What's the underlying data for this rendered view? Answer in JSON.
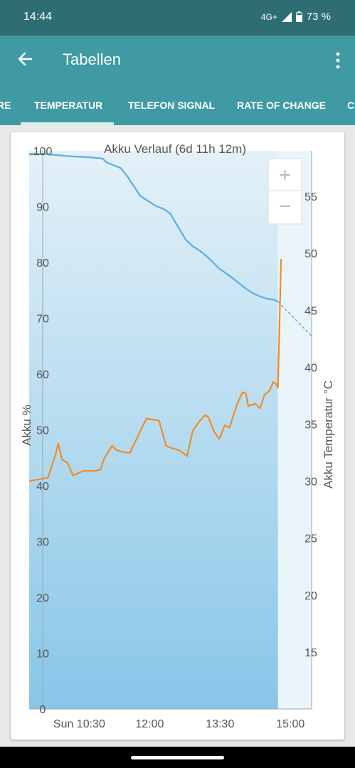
{
  "status": {
    "time": "14:44",
    "network": "4G+",
    "battery": "73 %"
  },
  "appbar": {
    "title": "Tabellen"
  },
  "tabs": [
    {
      "label": "RE"
    },
    {
      "label": "TEMPERATUR",
      "selected": true
    },
    {
      "label": "TELEFON SIGNAL"
    },
    {
      "label": "RATE OF CHANGE"
    },
    {
      "label": "C"
    }
  ],
  "zoom": {
    "in": "+",
    "out": "−"
  },
  "colors": {
    "status_bar": "#2e6e72",
    "app_bar": "#3f9aa4",
    "battery_line": "#5aaede",
    "temperature_line": "#ef8c2a",
    "fill_top": "#e4f1f8",
    "fill_bottom": "#88c6e8",
    "start_marker": "#8bc34a"
  },
  "chart_data": {
    "type": "line",
    "title": "Akku Verlauf (6d 11h 12m)",
    "ylabel": "Akku %",
    "ylabel_right": "Akku Temperatur °C",
    "ylim": [
      0,
      100
    ],
    "ylim_right": [
      10,
      59
    ],
    "xlim": [
      "09:26",
      "15:27"
    ],
    "x_ticks": [
      "Sun 10:30",
      "12:00",
      "13:30",
      "15:00"
    ],
    "y_ticks": [
      "0",
      "10",
      "20",
      "30",
      "40",
      "50",
      "60",
      "70",
      "80",
      "90",
      "100"
    ],
    "y_ticks_right": [
      "15",
      "20",
      "25",
      "30",
      "35",
      "40",
      "45",
      "50",
      "55"
    ],
    "grid": false,
    "series": [
      {
        "axis": "left",
        "x": [
          "09:26",
          "09:46",
          "10:20",
          "10:45",
          "11:00",
          "11:05",
          "11:14",
          "11:23",
          "11:32",
          "11:40",
          "11:48",
          "11:59",
          "12:08",
          "12:17",
          "12:26",
          "12:35",
          "12:46",
          "12:55",
          "13:04",
          "13:13",
          "13:19",
          "13:28",
          "13:37",
          "13:45",
          "13:54",
          "14:03",
          "14:12",
          "14:21",
          "14:30",
          "14:39",
          "14:44"
        ],
        "values": [
          99.4,
          99.4,
          99.0,
          98.8,
          98.6,
          97.9,
          97.4,
          96.9,
          95.3,
          93.6,
          91.9,
          90.9,
          90.1,
          89.6,
          88.8,
          86.7,
          84.1,
          82.9,
          82.1,
          81.1,
          80.3,
          79.0,
          78.1,
          77.3,
          76.3,
          75.3,
          74.5,
          73.9,
          73.5,
          73.3,
          73.0
        ]
      },
      {
        "axis": "left",
        "style": "dashed",
        "x": [
          "14:44",
          "15:27"
        ],
        "values": [
          73.0,
          66.8
        ]
      },
      {
        "axis": "right",
        "x": [
          "09:26",
          "09:50",
          "10:00",
          "10:03",
          "10:08",
          "10:15",
          "10:22",
          "10:35",
          "10:50",
          "10:57",
          "11:02",
          "11:12",
          "11:18",
          "11:29",
          "11:35",
          "11:48",
          "11:56",
          "12:12",
          "12:21",
          "12:28",
          "12:38",
          "12:48",
          "12:55",
          "13:02",
          "13:11",
          "13:15",
          "13:22",
          "13:29",
          "13:36",
          "13:42",
          "13:52",
          "13:59",
          "14:03",
          "14:06",
          "14:15",
          "14:21",
          "14:27",
          "14:33",
          "14:38",
          "14:42",
          "14:44",
          "14:48"
        ],
        "values": [
          30.0,
          30.3,
          32.4,
          33.3,
          31.9,
          31.6,
          30.5,
          30.9,
          30.9,
          31.0,
          32.0,
          33.1,
          32.7,
          32.5,
          32.5,
          34.4,
          35.5,
          35.3,
          33.1,
          32.9,
          32.7,
          32.2,
          34.4,
          35.1,
          35.8,
          35.6,
          34.4,
          33.7,
          34.9,
          34.7,
          36.8,
          37.8,
          37.7,
          36.6,
          36.8,
          36.4,
          37.6,
          37.9,
          38.7,
          38.5,
          38.2,
          49.5
        ]
      }
    ]
  }
}
